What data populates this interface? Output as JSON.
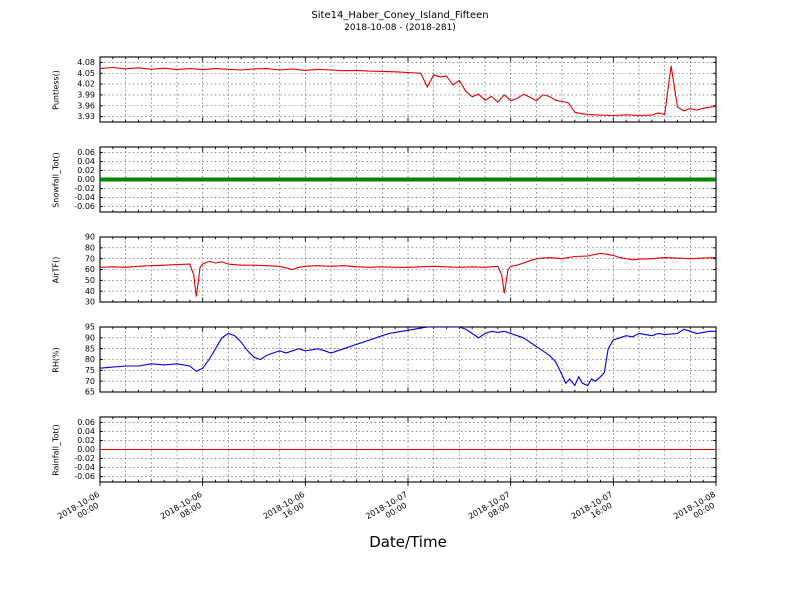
{
  "title": "Site14_Haber_Coney_Island_Fifteen",
  "subtitle": "2018-10-08 - (2018-281)",
  "xlabel": "Date/Time",
  "axis": {
    "xlim": [
      0,
      48
    ],
    "xticks": [
      0,
      8,
      16,
      24,
      32,
      40,
      48
    ],
    "xtick_labels": [
      "2018-10-06 00:00",
      "2018-10-06 08:00",
      "2018-10-06 16:00",
      "2018-10-07 00:00",
      "2018-10-07 08:00",
      "2018-10-07 16:00",
      "2018-10-08 00:00"
    ],
    "x_grid_step": 2,
    "x_minor_step": 1,
    "grid": "dashed"
  },
  "chart_data": [
    {
      "type": "line",
      "ylabel": "Puntless()",
      "color": "#e00000",
      "line_width": 1.1,
      "ylim": [
        3.915,
        4.095
      ],
      "ytick_labels": [
        "3.93",
        "3.96",
        "3.99",
        "4.02",
        "4.05",
        "4.08"
      ],
      "points": [
        [
          0,
          4.063
        ],
        [
          1,
          4.066
        ],
        [
          2,
          4.062
        ],
        [
          3,
          4.065
        ],
        [
          4,
          4.061
        ],
        [
          5,
          4.064
        ],
        [
          6,
          4.06
        ],
        [
          7,
          4.063
        ],
        [
          8,
          4.06
        ],
        [
          9,
          4.063
        ],
        [
          10,
          4.061
        ],
        [
          11,
          4.059
        ],
        [
          12,
          4.062
        ],
        [
          13,
          4.063
        ],
        [
          14,
          4.059
        ],
        [
          15,
          4.062
        ],
        [
          16,
          4.058
        ],
        [
          17,
          4.061
        ],
        [
          18,
          4.059
        ],
        [
          19,
          4.057
        ],
        [
          20,
          4.058
        ],
        [
          21,
          4.056
        ],
        [
          22,
          4.055
        ],
        [
          23,
          4.054
        ],
        [
          24,
          4.052
        ],
        [
          25,
          4.05
        ],
        [
          25.5,
          4.012
        ],
        [
          26,
          4.046
        ],
        [
          26.5,
          4.04
        ],
        [
          27,
          4.042
        ],
        [
          27.5,
          4.018
        ],
        [
          28,
          4.03
        ],
        [
          28.5,
          4.0
        ],
        [
          29,
          3.985
        ],
        [
          29.5,
          3.992
        ],
        [
          30,
          3.975
        ],
        [
          30.5,
          3.986
        ],
        [
          31,
          3.97
        ],
        [
          31.5,
          3.99
        ],
        [
          32,
          3.974
        ],
        [
          32.5,
          3.98
        ],
        [
          33,
          3.992
        ],
        [
          33.5,
          3.984
        ],
        [
          34,
          3.974
        ],
        [
          34.5,
          3.99
        ],
        [
          35,
          3.986
        ],
        [
          35.5,
          3.975
        ],
        [
          36,
          3.972
        ],
        [
          36.5,
          3.968
        ],
        [
          37,
          3.942
        ],
        [
          37.5,
          3.938
        ],
        [
          38,
          3.936
        ],
        [
          39,
          3.934
        ],
        [
          40,
          3.933
        ],
        [
          41,
          3.935
        ],
        [
          42,
          3.933
        ],
        [
          43,
          3.934
        ],
        [
          43.5,
          3.94
        ],
        [
          44,
          3.936
        ],
        [
          44.5,
          4.07
        ],
        [
          45,
          3.956
        ],
        [
          45.5,
          3.946
        ],
        [
          46,
          3.952
        ],
        [
          46.5,
          3.948
        ],
        [
          47,
          3.953
        ],
        [
          47.5,
          3.956
        ],
        [
          48,
          3.958
        ]
      ]
    },
    {
      "type": "line",
      "ylabel": "Snowfall_Tot()",
      "color": "#008000",
      "line_width": 4,
      "ylim": [
        -0.072,
        0.072
      ],
      "ytick_labels": [
        "-0.06",
        "-0.04",
        "-0.02",
        "0.00",
        "0.02",
        "0.04",
        "0.06"
      ],
      "points": [
        [
          0,
          0
        ],
        [
          48,
          0
        ]
      ]
    },
    {
      "type": "line",
      "ylabel": "AirTF()",
      "color": "#e00000",
      "line_width": 1.1,
      "ylim": [
        30,
        90
      ],
      "ytick_labels": [
        "30",
        "40",
        "50",
        "60",
        "70",
        "80",
        "90"
      ],
      "points": [
        [
          0,
          62
        ],
        [
          1,
          62.5
        ],
        [
          2,
          62
        ],
        [
          3,
          63
        ],
        [
          4,
          63.5
        ],
        [
          5,
          64
        ],
        [
          6,
          64.5
        ],
        [
          7,
          65
        ],
        [
          7.3,
          55
        ],
        [
          7.5,
          35
        ],
        [
          7.8,
          62
        ],
        [
          8,
          65
        ],
        [
          8.5,
          67.5
        ],
        [
          9,
          66
        ],
        [
          9.5,
          67
        ],
        [
          10,
          65
        ],
        [
          11,
          64
        ],
        [
          12,
          64
        ],
        [
          13,
          63.5
        ],
        [
          14,
          63
        ],
        [
          15,
          60
        ],
        [
          15.5,
          62
        ],
        [
          16,
          63
        ],
        [
          17,
          63.5
        ],
        [
          18,
          63
        ],
        [
          19,
          63.5
        ],
        [
          20,
          62.5
        ],
        [
          21,
          62
        ],
        [
          22,
          62.5
        ],
        [
          23,
          62
        ],
        [
          24,
          62
        ],
        [
          25,
          62.5
        ],
        [
          26,
          63
        ],
        [
          27,
          62.5
        ],
        [
          28,
          62
        ],
        [
          29,
          62.5
        ],
        [
          30,
          62
        ],
        [
          31,
          63
        ],
        [
          31.3,
          55
        ],
        [
          31.5,
          38
        ],
        [
          31.8,
          60
        ],
        [
          32,
          63
        ],
        [
          32.5,
          64
        ],
        [
          33,
          66
        ],
        [
          33.5,
          68
        ],
        [
          34,
          70
        ],
        [
          35,
          71
        ],
        [
          36,
          70
        ],
        [
          36.5,
          71
        ],
        [
          37,
          72
        ],
        [
          38,
          72.5
        ],
        [
          39,
          75
        ],
        [
          39.5,
          74
        ],
        [
          40,
          73
        ],
        [
          40.5,
          71
        ],
        [
          41,
          70
        ],
        [
          41.5,
          69
        ],
        [
          42,
          69.5
        ],
        [
          43,
          70
        ],
        [
          44,
          71
        ],
        [
          45,
          70.5
        ],
        [
          46,
          70
        ],
        [
          47,
          70.5
        ],
        [
          48,
          71
        ]
      ]
    },
    {
      "type": "line",
      "ylabel": "RH(%)",
      "color": "#0000dd",
      "line_width": 1.1,
      "ylim": [
        65,
        95
      ],
      "ytick_labels": [
        "65",
        "70",
        "75",
        "80",
        "85",
        "90",
        "95"
      ],
      "points": [
        [
          0,
          76
        ],
        [
          1,
          76.5
        ],
        [
          2,
          77
        ],
        [
          3,
          77
        ],
        [
          4,
          78
        ],
        [
          5,
          77.5
        ],
        [
          6,
          78
        ],
        [
          7,
          77
        ],
        [
          7.5,
          74.5
        ],
        [
          8,
          76
        ],
        [
          8.5,
          80
        ],
        [
          9,
          85
        ],
        [
          9.5,
          90
        ],
        [
          10,
          92
        ],
        [
          10.5,
          91
        ],
        [
          11,
          88
        ],
        [
          11.5,
          84
        ],
        [
          12,
          81
        ],
        [
          12.5,
          80
        ],
        [
          13,
          82
        ],
        [
          13.5,
          83
        ],
        [
          14,
          84
        ],
        [
          14.5,
          83
        ],
        [
          15,
          84
        ],
        [
          15.5,
          85
        ],
        [
          16,
          84
        ],
        [
          16.5,
          84.5
        ],
        [
          17,
          85
        ],
        [
          17.5,
          84
        ],
        [
          18,
          83
        ],
        [
          18.5,
          84
        ],
        [
          19,
          85
        ],
        [
          19.5,
          86
        ],
        [
          20,
          87
        ],
        [
          20.5,
          88
        ],
        [
          21,
          89
        ],
        [
          21.5,
          90
        ],
        [
          22,
          91
        ],
        [
          22.5,
          92
        ],
        [
          23,
          92.5
        ],
        [
          23.5,
          93
        ],
        [
          24,
          93.5
        ],
        [
          24.5,
          94
        ],
        [
          25,
          94.5
        ],
        [
          25.5,
          95
        ],
        [
          26,
          95
        ],
        [
          27,
          95
        ],
        [
          28,
          95
        ],
        [
          28.5,
          94
        ],
        [
          29,
          92
        ],
        [
          29.5,
          90
        ],
        [
          30,
          92
        ],
        [
          30.5,
          93
        ],
        [
          31,
          92.5
        ],
        [
          31.5,
          93
        ],
        [
          32,
          92
        ],
        [
          32.5,
          91
        ],
        [
          33,
          90
        ],
        [
          33.5,
          88
        ],
        [
          34,
          86
        ],
        [
          34.5,
          84
        ],
        [
          35,
          82
        ],
        [
          35.5,
          79
        ],
        [
          36,
          73
        ],
        [
          36.3,
          69
        ],
        [
          36.6,
          71
        ],
        [
          37,
          68
        ],
        [
          37.3,
          72
        ],
        [
          37.6,
          69
        ],
        [
          38,
          68
        ],
        [
          38.3,
          71
        ],
        [
          38.6,
          70
        ],
        [
          39,
          72
        ],
        [
          39.3,
          74
        ],
        [
          39.6,
          85
        ],
        [
          40,
          89
        ],
        [
          40.5,
          90
        ],
        [
          41,
          91
        ],
        [
          41.5,
          90.5
        ],
        [
          42,
          92
        ],
        [
          42.5,
          91.5
        ],
        [
          43,
          91
        ],
        [
          43.5,
          92
        ],
        [
          44,
          91.5
        ],
        [
          45,
          92
        ],
        [
          45.5,
          94
        ],
        [
          46,
          93
        ],
        [
          46.5,
          92
        ],
        [
          47,
          92.5
        ],
        [
          47.5,
          93
        ],
        [
          48,
          93
        ]
      ]
    },
    {
      "type": "line",
      "ylabel": "Rainfall_Tot()",
      "color": "#e00000",
      "line_width": 1,
      "ylim": [
        -0.072,
        0.072
      ],
      "ytick_labels": [
        "-0.06",
        "-0.04",
        "-0.02",
        "0.00",
        "0.02",
        "0.04",
        "0.06"
      ],
      "points": [
        [
          0,
          0
        ],
        [
          48,
          0
        ]
      ]
    }
  ]
}
